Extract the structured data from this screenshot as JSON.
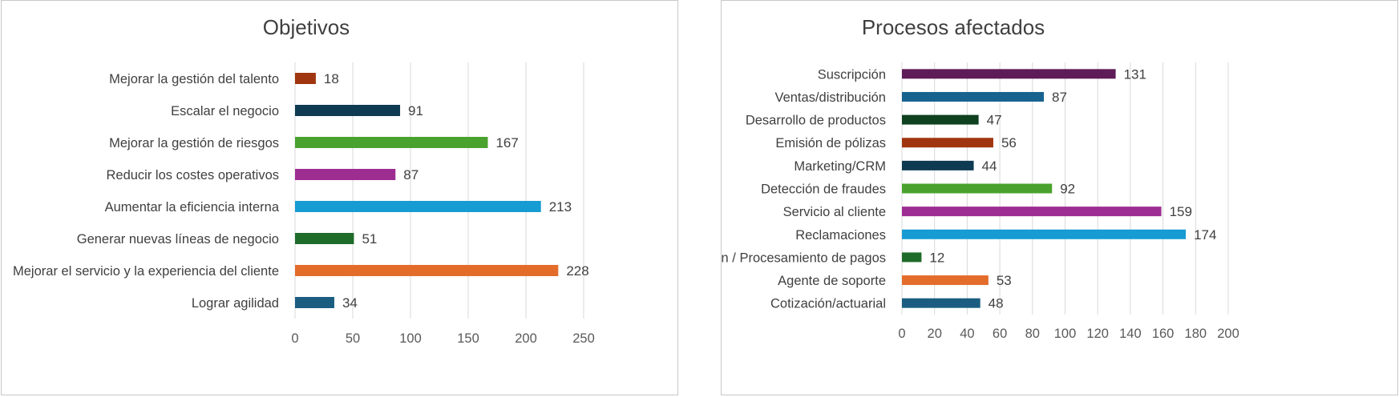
{
  "chart_data": [
    {
      "type": "bar",
      "orientation": "horizontal",
      "title": "Objetivos",
      "categories": [
        "Mejorar la gestión del talento",
        "Escalar el negocio",
        "Mejorar la gestión de riesgos",
        "Reducir los costes operativos",
        "Aumentar la eficiencia interna",
        "Generar nuevas líneas de negocio",
        "Mejorar el servicio y la experiencia del cliente",
        "Lograr agilidad"
      ],
      "values": [
        18,
        91,
        167,
        87,
        213,
        51,
        228,
        34
      ],
      "colors": [
        "#a0360f",
        "#0e3a52",
        "#4aa22e",
        "#9e2d92",
        "#169bd2",
        "#1e6b2a",
        "#e46c2b",
        "#1a5d80"
      ],
      "xlim": [
        0,
        250
      ],
      "xticks": [
        0,
        50,
        100,
        150,
        200,
        250
      ],
      "grid": true,
      "data_labels": true
    },
    {
      "type": "bar",
      "orientation": "horizontal",
      "title": "Procesos afectados",
      "categories": [
        "Suscripción",
        "Ventas/distribución",
        "Desarrollo de productos",
        "Emisión de pólizas",
        "Marketing/CRM",
        "Detección de fraudes",
        "Servicio al cliente",
        "Reclamaciones",
        "Facturación / Procesamiento de pagos",
        "Agente de soporte",
        "Cotización/actuarial"
      ],
      "values": [
        131,
        87,
        47,
        56,
        44,
        92,
        159,
        174,
        12,
        53,
        48
      ],
      "colors": [
        "#5f1b58",
        "#17628f",
        "#0f4020",
        "#a0360f",
        "#0e3a52",
        "#4aa22e",
        "#9e2d92",
        "#169bd2",
        "#1e6b2a",
        "#e46c2b",
        "#1a5d80"
      ],
      "xlim": [
        0,
        200
      ],
      "xticks": [
        0,
        20,
        40,
        60,
        80,
        100,
        120,
        140,
        160,
        180,
        200
      ],
      "grid": true,
      "data_labels": true
    }
  ]
}
